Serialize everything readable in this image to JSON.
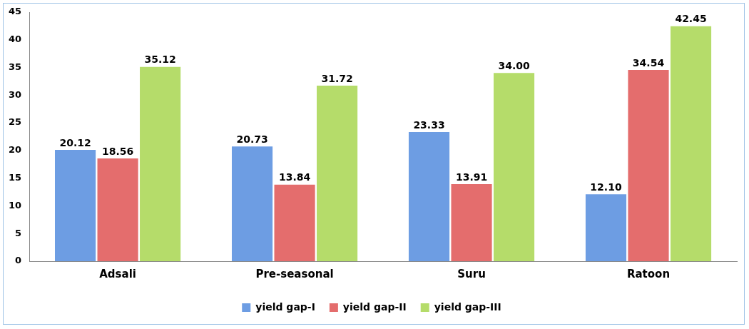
{
  "chart_data": {
    "type": "bar",
    "categories": [
      "Adsali",
      "Pre-seasonal",
      "Suru",
      "Ratoon"
    ],
    "series": [
      {
        "name": "yield gap-I",
        "color": "#6d9de3",
        "values": [
          20.12,
          20.73,
          23.33,
          12.1
        ],
        "value_labels": [
          "20.12",
          "20.73",
          "23.33",
          "12.10"
        ]
      },
      {
        "name": "yield gap-II",
        "color": "#e46d6d",
        "values": [
          18.56,
          13.84,
          13.91,
          34.54
        ],
        "value_labels": [
          "18.56",
          "13.84",
          "13.91",
          "34.54"
        ]
      },
      {
        "name": "yield gap-III",
        "color": "#b5dc6a",
        "values": [
          35.12,
          31.72,
          34,
          42.45
        ],
        "value_labels": [
          "35.12",
          "31.72",
          "34.00",
          "42.45"
        ]
      }
    ],
    "ylim": [
      0,
      45
    ],
    "yticks": [
      0,
      5,
      10,
      15,
      20,
      25,
      30,
      35,
      40,
      45
    ],
    "grid": false,
    "legend": "bottom"
  }
}
